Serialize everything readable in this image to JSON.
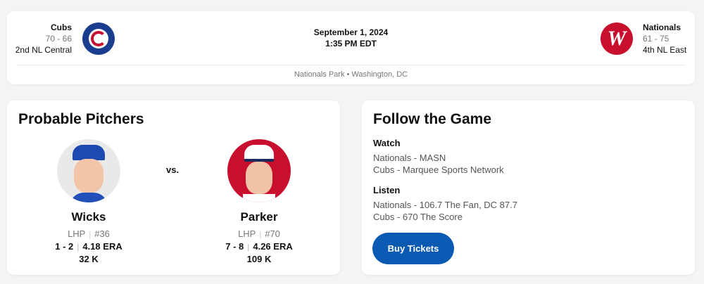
{
  "game": {
    "away": {
      "name": "Cubs",
      "record": "70 - 66",
      "standing": "2nd NL Central",
      "color": "#1b3d8f"
    },
    "home": {
      "name": "Nationals",
      "record": "61 - 75",
      "standing": "4th NL East",
      "color": "#c8102e"
    },
    "date": "September 1, 2024",
    "time": "1:35 PM EDT",
    "venue": "Nationals Park • Washington, DC"
  },
  "pitchers": {
    "title": "Probable Pitchers",
    "vs": "vs.",
    "list": [
      {
        "name": "Wicks",
        "hand": "LHP",
        "number": "#36",
        "record": "1 - 2",
        "era": "4.18 ERA",
        "k": "32 K"
      },
      {
        "name": "Parker",
        "hand": "LHP",
        "number": "#70",
        "record": "7 - 8",
        "era": "4.26 ERA",
        "k": "109 K"
      }
    ]
  },
  "follow": {
    "title": "Follow the Game",
    "watch_label": "Watch",
    "watch": [
      "Nationals - MASN",
      "Cubs - Marquee Sports Network"
    ],
    "listen_label": "Listen",
    "listen": [
      "Nationals - 106.7 The Fan, DC 87.7",
      "Cubs - 670 The Score"
    ],
    "button": "Buy Tickets",
    "button_color": "#0a5ab4"
  }
}
